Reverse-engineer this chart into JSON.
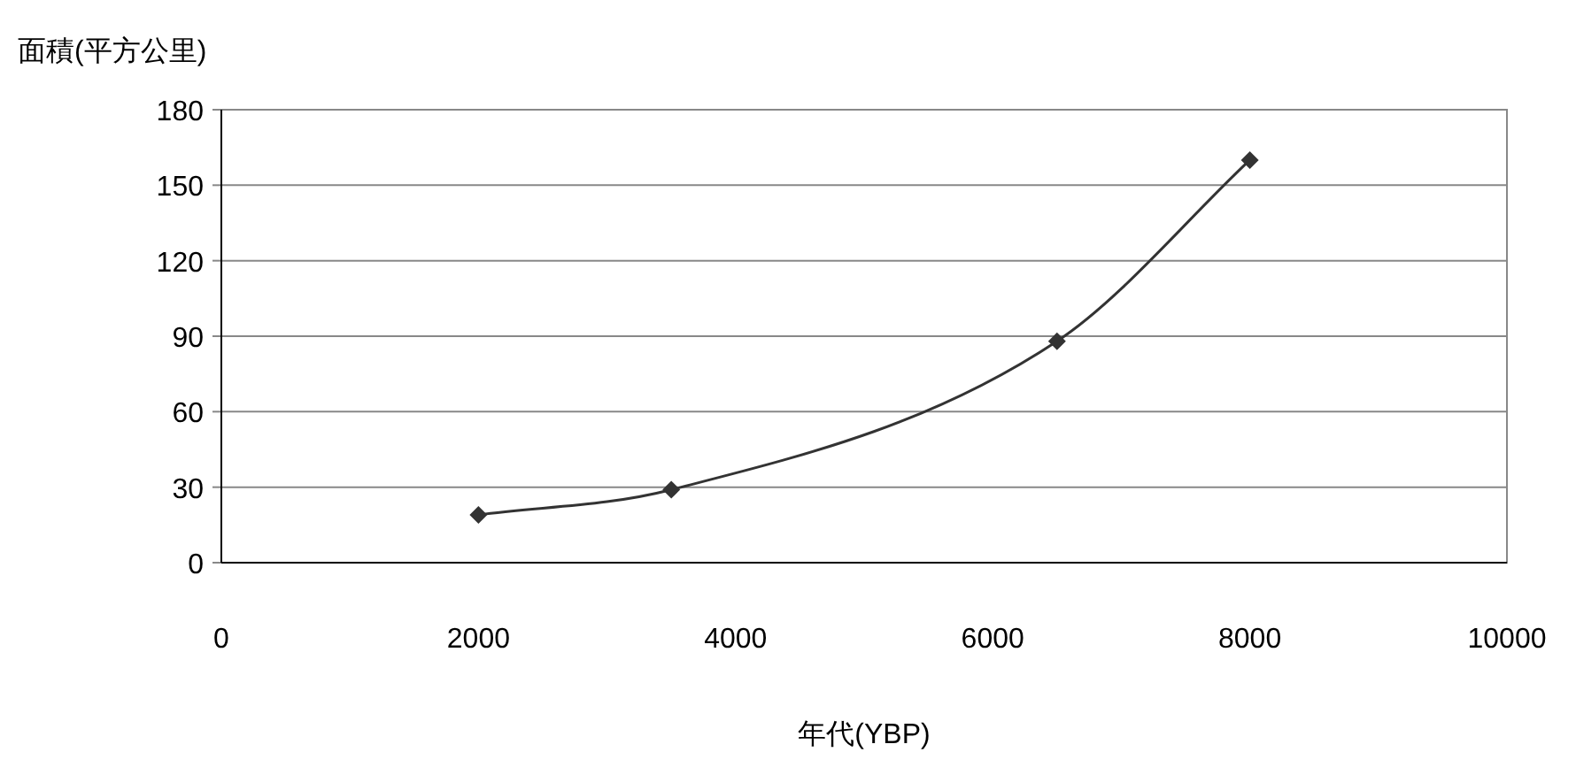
{
  "chart_data": {
    "type": "line",
    "ylabel": "面積(平方公里)",
    "xlabel": "年代(YBP)",
    "x": [
      2000,
      3500,
      6500,
      8000
    ],
    "series": [
      {
        "color": "#333333",
        "values": [
          19,
          29,
          88,
          160
        ]
      }
    ],
    "xlim": [
      0,
      10000
    ],
    "xticks": [
      0,
      2000,
      4000,
      6000,
      8000,
      10000
    ],
    "ylim": [
      0,
      180
    ],
    "yticks": [
      0,
      30,
      60,
      90,
      120,
      150,
      180
    ],
    "grid": "y",
    "marker": "diamond",
    "line_style": "solid"
  }
}
